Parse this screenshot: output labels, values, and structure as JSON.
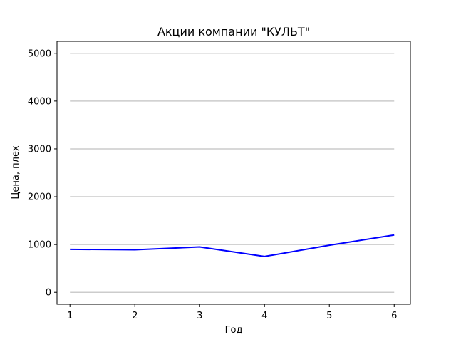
{
  "chart_data": {
    "type": "line",
    "title": "Акции компании \"КУЛЬТ\"",
    "xlabel": "Год",
    "ylabel": "Цена, плех",
    "x": [
      1,
      2,
      3,
      4,
      5,
      6
    ],
    "series": [
      {
        "values": [
          900,
          890,
          950,
          750,
          985,
          1200
        ],
        "color": "#0000ff"
      }
    ],
    "xticks": [
      "1",
      "2",
      "3",
      "4",
      "5",
      "6"
    ],
    "yticks": [
      "0",
      "1000",
      "2000",
      "3000",
      "4000",
      "5000"
    ],
    "xlim": [
      0.8,
      6.25
    ],
    "ylim": [
      -250,
      5250
    ],
    "grid": "horizontal",
    "grid_color": "#cccccc"
  }
}
